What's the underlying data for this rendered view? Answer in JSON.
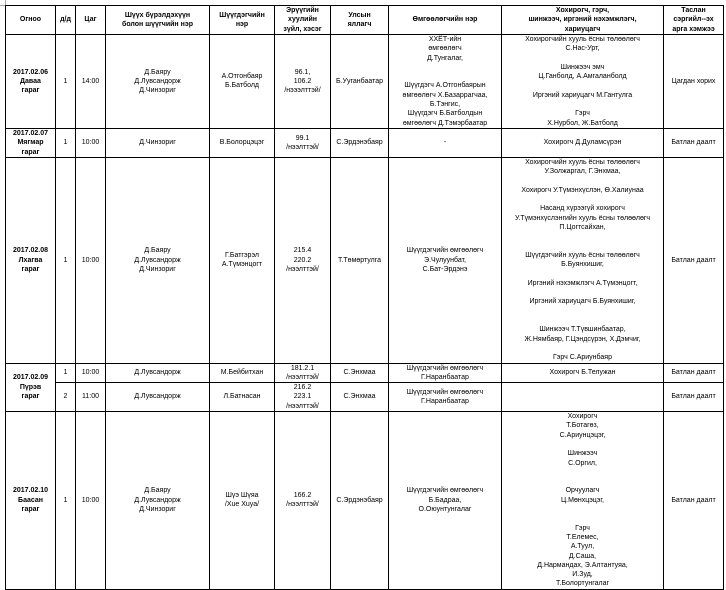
{
  "headers": [
    "Огноо",
    "д/д",
    "Цаг",
    "Шүүх бүрэлдэхүүн\nболон шүүгчийн нэр",
    "Шүүгдэгчийн\nнэр",
    "Эрүүгийн\nхуулийн\nзүйл, хэсэг",
    "Улсын\nяллагч",
    "Өмгөөлөгчийн нэр",
    "Хохирогч, гэрч,\nшинжээч, иргэний нэхэмжлэгч,\nхариуцагч",
    "Таслан\nсэргийл--эх\nарга хэмжээ"
  ],
  "rows": [
    {
      "date": "2017.02.06\nДаваа\nгараг",
      "no": "1",
      "time": "14:00",
      "judges": "Д.Баяру\nД.Лувсандорж\nД.Чинзориг",
      "defendant": "А.Отгонбаяр\nБ.Батболд",
      "article": "96.1,\n106.2\n/нэээлттэй/",
      "prosecutor": "Б.Ууганбаатар",
      "lawyer": "ХХЁТ-ийн\nөмгөөлөгч\nД.Тунгалаг,\n\n\nШүүгдэгч А.Отгонбаярын\nөмгөөлөгч Х.Базаррагчаа,\nБ.Тэнгис,\nШүүгдэгч Б.Батболдын\nөмгөөлөгч Д.Тэмэрбаатар",
      "parties": "Хохирогчийн хууль ёсны төлөөлөгч\nС.Нас-Урт,\n\nШинжээч эмч\nЦ.Ганболд, А.Амгаланболд\n\nИргэний хариуцагч М.Гантулга\n\nГэрч\nХ.Нурбол,   Ж.Батболд",
      "measure": "Цагдан хорих"
    },
    {
      "date": "2017.02.07\nМягмар\nгараг",
      "no": "1",
      "time": "10:00",
      "judges": "Д.Чинзориг",
      "defendant": "В.Болорцэцэг",
      "article": "99.1\n/нээлттэй/",
      "prosecutor": "С.Эрдэнэбаяр",
      "lawyer": "-",
      "parties": "Хохирогч Д.Дуламсүрэн",
      "measure": "Батлан даалт"
    },
    {
      "date": "2017.02.08\nЛхагва\nгараг",
      "no": "1",
      "time": "10:00",
      "judges": "Д.Баяру\nД.Лувсандорж\nД.Чинзориг",
      "defendant": "Г.Батгэрэл\nА.Түмэнцогт",
      "article": "215.4\n220.2\n/нээлттэй/",
      "prosecutor": "Т.Төмөртулга",
      "lawyer": "Шүүгдэгчийн өмгөөлөгч\nЭ.Чулуунбат,\nС.Бат-Эрдэнэ",
      "parties": "Хохирогчийн хууль ёсны төлөөлөгч\nУ.Золжаргал, Г.Энхмаа,\n\nХохирогч У.Түмэнхүслэн, Ө.Халиунаа\n\nНасанд хүрээгүй хохирогч\nУ.Түмэнхүслэнгийн хууль ёсны төлөөлөгч\nП.Цогтсайхан,\n\n\nШүүгдэгчийн  хууль ёсны төлөөлөгч\nБ.Буянхишиг,\n\nИргэний нэхэмжлэгч А.Түмэнцогт,\n\nИргэний хариуцагч Б.Буянхишиг,\n\n\nШинжээч Т.Түвшинбаатар,\nЖ.Нямбаяр, Г.Цэндсүрэн, Х.Дэмчиг,\n\nГэрч С.Ариунбаяр",
      "measure": "Батлан даалт"
    },
    {
      "date": "2017.02.09\nПүрэв\nгараг",
      "no": "1",
      "time": "10:00",
      "judges": "Д.Лувсандорж",
      "defendant": "М.Бейбитхан",
      "article": "181.2.1\n/нээлттэй/",
      "prosecutor": "С.Энхмаа",
      "lawyer": "Шүүгдэгчийн өмгөөлөгч\nГ.Наранбаатар",
      "parties": "Хохирогч Б.Телужан",
      "measure": "Батлан даалт"
    },
    {
      "no": "2",
      "time": "11:00",
      "judges": "Д.Лувсандорж",
      "defendant": "Л.Батнасан",
      "article": "216.2\n223.1\n/нээлттэй/",
      "prosecutor": "С.Энхмаа",
      "lawyer": "Шүүгдэгчийн өмгөөлөгч\nГ.Наранбаатар",
      "parties": "",
      "measure": "Батлан даалт"
    },
    {
      "date": "2017.02.10\nБаасан\nгараг",
      "no": "1",
      "time": "10:00",
      "judges": "Д.Баяру\nД.Лувсандорж\nД.Чинзориг",
      "defendant": "Шүэ Шүяа\n/Xue Xuya/",
      "article": "166.2\n/нээлттэй/",
      "prosecutor": "С.Эрдэнэбаяр",
      "lawyer": "Шүүгдэгчийн өмгөөлөгч\nБ.Бадраа,\nО.Оюунтунгалаг",
      "parties": "Хохирогч\nТ.Ботагөз,\nС.Ариунцэцэг,\n\nШинжээч\nС.Оргил,\n\n\nОрчуулагч\nЦ.Мөнхцэцэг,\n\n\nГэрч\nТ.Елемес,\nА.Туул,\nД.Саша,\nД.Нармандах, Э.Алтантуяа,\nИ.Зуд,\nТ.Болортунгалаг",
      "measure": "Батлан даалт"
    }
  ]
}
